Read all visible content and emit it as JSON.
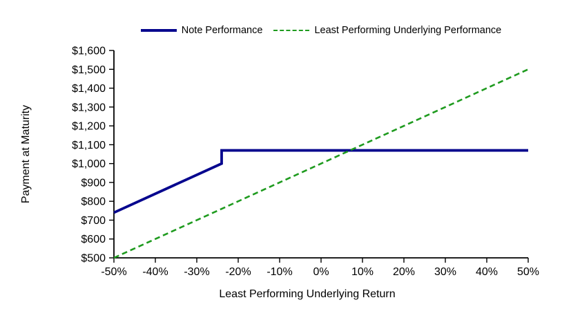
{
  "chart_data": {
    "type": "line",
    "title": "",
    "xlabel": "Least Performing Underlying Return",
    "ylabel": "Payment at Maturity",
    "grid": false,
    "legend_position": "top",
    "background_color": "#ffffff",
    "axis_color": "#000000",
    "text_color": "#000000",
    "x_axis": {
      "min": -50,
      "max": 50,
      "step": 10,
      "tick_labels": [
        "-50%",
        "-40%",
        "-30%",
        "-20%",
        "-10%",
        "0%",
        "10%",
        "20%",
        "30%",
        "40%",
        "50%"
      ]
    },
    "y_axis": {
      "min": 500,
      "max": 1600,
      "step": 100,
      "tick_labels": [
        "$500",
        "$600",
        "$700",
        "$800",
        "$900",
        "$1,000",
        "$1,100",
        "$1,200",
        "$1,300",
        "$1,400",
        "$1,500",
        "$1,600"
      ]
    },
    "series": [
      {
        "name": "Note Performance",
        "color": "#05058E",
        "style": "solid",
        "width": 3.8,
        "points": [
          [
            -50,
            740
          ],
          [
            -24,
            1000
          ],
          [
            -24,
            1070
          ],
          [
            50,
            1070
          ]
        ]
      },
      {
        "name": "Least Performing Underlying Performance",
        "color": "#1F9B1F",
        "style": "dashed",
        "width": 2.6,
        "points": [
          [
            -50,
            500
          ],
          [
            50,
            1500
          ]
        ]
      }
    ]
  }
}
